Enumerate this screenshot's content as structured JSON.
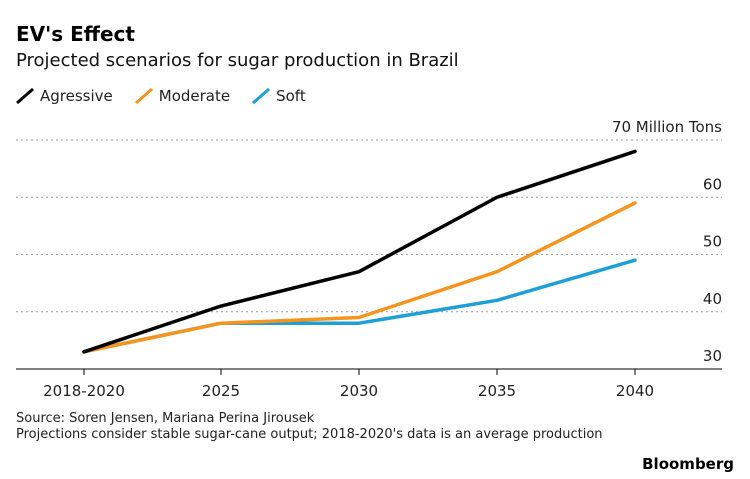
{
  "header": {
    "title": "EV's Effect",
    "subtitle": "Projected scenarios for sugar production in Brazil"
  },
  "footer": {
    "source": "Source: Soren Jensen, Mariana Perina Jirousek",
    "note": "Projections consider stable sugar-cane output; 2018-2020's data is an average production",
    "brand": "Bloomberg"
  },
  "chart_data": {
    "type": "line",
    "title": "EV's Effect",
    "subtitle": "Projected scenarios for sugar production in Brazil",
    "categories": [
      "2018-2020",
      "2025",
      "2030",
      "2035",
      "2040"
    ],
    "ylabel": "70 Million Tons",
    "ylim": [
      30,
      70
    ],
    "yticks": [
      30,
      40,
      50,
      60,
      70
    ],
    "ytick_labels": [
      "30",
      "40",
      "50",
      "60",
      "70 Million Tons"
    ],
    "grid": true,
    "legend_position": "top-left",
    "series": [
      {
        "name": "Agressive",
        "color": "#000000",
        "values": [
          33,
          41,
          47,
          60,
          68
        ]
      },
      {
        "name": "Moderate",
        "color": "#f7941d",
        "values": [
          33,
          38,
          39,
          47,
          59
        ]
      },
      {
        "name": "Soft",
        "color": "#1ea0d7",
        "values": [
          33,
          38,
          38,
          42,
          49
        ]
      }
    ]
  }
}
